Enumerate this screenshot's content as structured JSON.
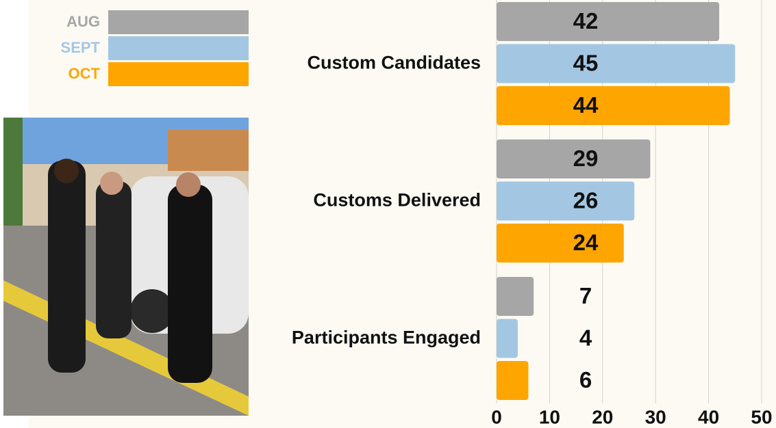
{
  "chart_data": {
    "type": "barh",
    "categories": [
      "Custom Candidates",
      "Customs Delivered",
      "Participants Engaged"
    ],
    "series": [
      {
        "name": "AUG",
        "color": "#a6a6a6",
        "values": [
          42,
          29,
          7
        ]
      },
      {
        "name": "SEPT",
        "color": "#a3c7e3",
        "values": [
          45,
          26,
          4
        ]
      },
      {
        "name": "OCT",
        "color": "#ffa500",
        "values": [
          44,
          24,
          6
        ]
      }
    ],
    "xlim": [
      0,
      50
    ],
    "xticks": [
      0,
      10,
      20,
      30,
      40,
      50
    ],
    "grid": true,
    "legend": "top-left"
  }
}
